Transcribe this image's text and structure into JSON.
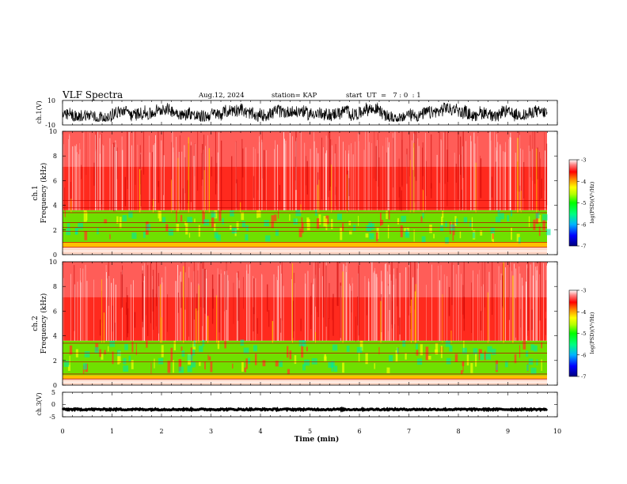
{
  "header": {
    "title": "VLF Spectra",
    "date": "Aug.12, 2024",
    "station": "station= KAP",
    "start_time": "start  UT  =   7 : 0  : 1"
  },
  "colors": {
    "waveform": "#000000",
    "colormap": [
      "#0000ff",
      "#00b4ff",
      "#00ffff",
      "#00ff00",
      "#b4ff00",
      "#ffff00",
      "#ff8000",
      "#ff0000",
      "#ff7f7f",
      "#ffffff"
    ]
  },
  "chart_data": [
    {
      "type": "line",
      "panel": "ch1-waveform",
      "ylabel": "ch.1(V)",
      "ylim": [
        -10,
        10
      ],
      "yticks": [
        "10",
        "-10"
      ],
      "xlim": [
        0,
        10
      ],
      "xlabel": "",
      "series": [
        {
          "description_of_signal": "noisy broadband waveform spanning roughly -7 to +9 V"
        }
      ]
    },
    {
      "type": "heatmap",
      "panel": "ch1-spectrogram",
      "ylabel": "ch.1 Frequency (kHz)",
      "ylim": [
        0,
        10
      ],
      "yticks": [
        "0",
        "2",
        "4",
        "6",
        "8",
        "10"
      ],
      "xlim": [
        0,
        10
      ],
      "colorbar": {
        "label": "log(PSD)(V²/Hz)",
        "range": [
          -7,
          -3
        ],
        "ticks": [
          "-3",
          "-4",
          "-5",
          "-6",
          "-7"
        ]
      },
      "features": {
        "green_band_khz": [
          1.0,
          3.6
        ],
        "red_background_khz": [
          3.6,
          10.0
        ],
        "quiet_band_khz": [
          0.0,
          0.6
        ],
        "horizontal_lines_khz": [
          0.6,
          1.0,
          1.9,
          2.2,
          2.6,
          3.4,
          3.8,
          4.4
        ]
      }
    },
    {
      "type": "heatmap",
      "panel": "ch2-spectrogram",
      "ylabel": "ch.2 Frequency (kHz)",
      "ylim": [
        0,
        10
      ],
      "yticks": [
        "0",
        "2",
        "4",
        "6",
        "8",
        "10"
      ],
      "xlim": [
        0,
        10
      ],
      "colorbar": {
        "label": "log(PSD)(V²/Hz)",
        "range": [
          -7,
          -3
        ],
        "ticks": [
          "-3",
          "-4",
          "-5",
          "-6",
          "-7"
        ]
      },
      "features": {
        "green_band_khz": [
          0.8,
          3.6
        ],
        "red_background_khz": [
          3.6,
          10.0
        ],
        "quiet_band_khz": [
          0.0,
          0.5
        ],
        "horizontal_lines_khz": [
          0.5,
          0.9,
          1.9,
          2.6,
          3.4
        ]
      }
    },
    {
      "type": "line",
      "panel": "ch3-waveform",
      "ylabel": "ch.3(V)",
      "ylim": [
        -5,
        5
      ],
      "yticks": [
        "5",
        "0",
        "-5"
      ],
      "xlim": [
        0,
        10
      ],
      "series": [
        {
          "description_of_signal": "nearly constant thick trace near -2 V"
        }
      ]
    }
  ],
  "xaxis": {
    "label": "Time  (min)",
    "ticks": [
      "0",
      "1",
      "2",
      "3",
      "4",
      "5",
      "6",
      "7",
      "8",
      "9",
      "10"
    ],
    "data_extent_min": [
      0,
      9.8
    ]
  }
}
